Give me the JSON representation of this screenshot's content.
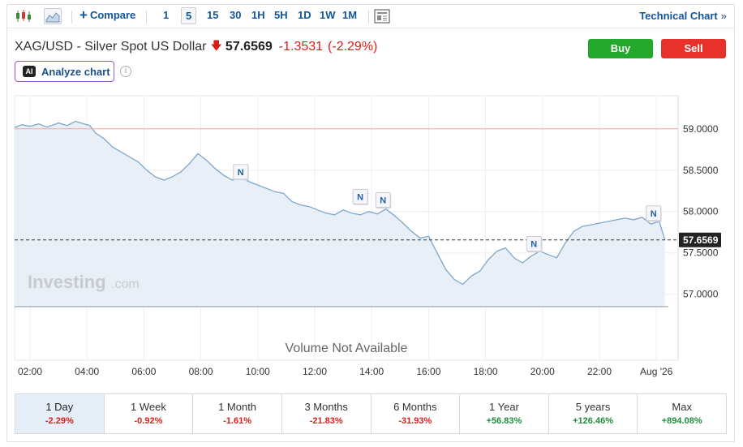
{
  "toolbar": {
    "compare_label": "Compare",
    "intervals": [
      "1",
      "5",
      "15",
      "30",
      "1H",
      "5H",
      "1D",
      "1W",
      "1M"
    ],
    "active_interval": "5",
    "technical_chart_label": "Technical Chart",
    "technical_chart_chevron": "»"
  },
  "instrument": {
    "name": "XAG/USD - Silver Spot US Dollar",
    "price": "57.6569",
    "change": "-1.3531",
    "change_pct": "(-2.29%)",
    "direction_icon": "down-arrow-icon"
  },
  "actions": {
    "buy_label": "Buy",
    "sell_label": "Sell",
    "analyze_badge": "AI",
    "analyze_label": "Analyze chart",
    "info_glyph": "i"
  },
  "chart_data": {
    "type": "area",
    "x_tick_labels": [
      "02:00",
      "04:00",
      "06:00",
      "08:00",
      "10:00",
      "12:00",
      "14:00",
      "16:00",
      "18:00",
      "20:00",
      "22:00",
      "Aug '26"
    ],
    "y_tick_labels": [
      "59.0000",
      "58.5000",
      "58.0000",
      "57.5000",
      "57.0000"
    ],
    "ylim": [
      56.85,
      59.4
    ],
    "y_ticks": [
      59.0,
      58.5,
      58.0,
      57.5,
      57.0
    ],
    "reference_line": 59.0,
    "last_price": 57.6569,
    "last_price_label": "57.6569",
    "x_hours": [
      1.5,
      1.7,
      2.0,
      2.3,
      2.6,
      3.0,
      3.3,
      3.6,
      3.9,
      4.1,
      4.3,
      4.6,
      4.9,
      5.2,
      5.5,
      5.8,
      6.1,
      6.4,
      6.7,
      7.0,
      7.3,
      7.6,
      7.9,
      8.2,
      8.5,
      8.8,
      9.1,
      9.4,
      9.7,
      10.0,
      10.3,
      10.6,
      10.9,
      11.2,
      11.5,
      11.8,
      12.1,
      12.4,
      12.7,
      13.0,
      13.3,
      13.6,
      13.9,
      14.2,
      14.5,
      14.8,
      15.1,
      15.4,
      15.7,
      16.0,
      16.3,
      16.6,
      16.9,
      17.2,
      17.5,
      17.8,
      18.1,
      18.4,
      18.7,
      19.0,
      19.3,
      19.6,
      19.9,
      20.2,
      20.5,
      20.8,
      21.1,
      21.4,
      21.7,
      22.0,
      22.3,
      22.6,
      22.9,
      23.2,
      23.5,
      23.8,
      24.1,
      24.3
    ],
    "values": [
      59.02,
      59.05,
      59.03,
      59.06,
      59.02,
      59.07,
      59.04,
      59.09,
      59.06,
      59.04,
      58.95,
      58.88,
      58.78,
      58.72,
      58.66,
      58.6,
      58.5,
      58.42,
      58.38,
      58.42,
      58.48,
      58.58,
      58.7,
      58.62,
      58.52,
      58.44,
      58.38,
      58.42,
      58.36,
      58.32,
      58.28,
      58.24,
      58.22,
      58.12,
      58.08,
      58.06,
      58.02,
      57.98,
      57.96,
      58.02,
      57.98,
      57.96,
      58.0,
      57.97,
      58.03,
      57.95,
      57.86,
      57.76,
      57.68,
      57.7,
      57.5,
      57.3,
      57.18,
      57.12,
      57.22,
      57.28,
      57.42,
      57.52,
      57.56,
      57.44,
      57.38,
      57.46,
      57.52,
      57.48,
      57.44,
      57.62,
      57.76,
      57.82,
      57.84,
      57.86,
      57.88,
      57.9,
      57.92,
      57.9,
      57.93,
      57.85,
      57.88,
      57.66
    ],
    "news_markers": [
      {
        "label": "N",
        "x": 9.4,
        "value": 58.48
      },
      {
        "label": "N",
        "x": 13.6,
        "value": 58.18
      },
      {
        "label": "N",
        "x": 14.4,
        "value": 58.14
      },
      {
        "label": "N",
        "x": 19.7,
        "value": 57.61
      },
      {
        "label": "N",
        "x": 23.9,
        "value": 57.98
      }
    ],
    "volume_text": "Volume Not Available",
    "watermark_main": "Investing",
    "watermark_sub": ".com",
    "colors": {
      "line": "#7ea6cc",
      "fill": "#e8eff6",
      "reference": "#f2a7a7",
      "last_price_tag": "#222222"
    }
  },
  "periods": [
    {
      "label": "1 Day",
      "change": "-2.29%",
      "sign": "neg",
      "active": true
    },
    {
      "label": "1 Week",
      "change": "-0.92%",
      "sign": "neg",
      "active": false
    },
    {
      "label": "1 Month",
      "change": "-1.61%",
      "sign": "neg",
      "active": false
    },
    {
      "label": "3 Months",
      "change": "-21.83%",
      "sign": "neg",
      "active": false
    },
    {
      "label": "6 Months",
      "change": "-31.93%",
      "sign": "neg",
      "active": false
    },
    {
      "label": "1 Year",
      "change": "+56.83%",
      "sign": "pos",
      "active": false
    },
    {
      "label": "5 years",
      "change": "+126.46%",
      "sign": "pos",
      "active": false
    },
    {
      "label": "Max",
      "change": "+894.08%",
      "sign": "pos",
      "active": false
    }
  ]
}
